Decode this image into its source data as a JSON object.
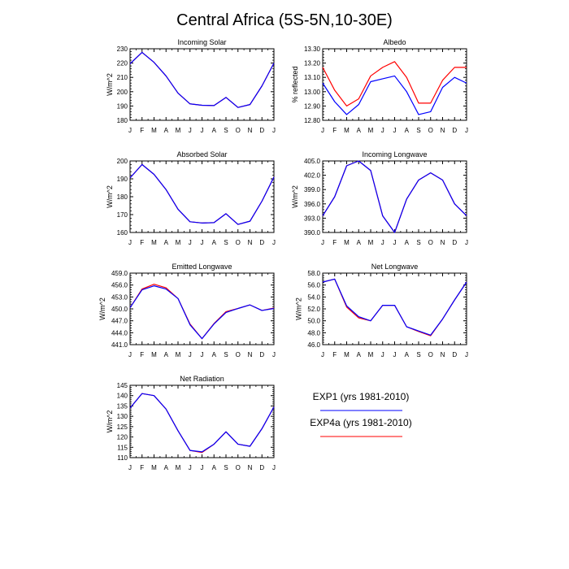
{
  "title": "Central Africa (5S-5N,10-30E)",
  "legend": [
    {
      "label": "EXP1 (yrs 1981-2010)",
      "color": "#0000ff"
    },
    {
      "label": "EXP4a (yrs 1981-2010)",
      "color": "#ff0000"
    }
  ],
  "chart_data": [
    {
      "type": "line",
      "title": "Incoming Solar",
      "ylabel": "W/m^2",
      "categories": [
        "J",
        "F",
        "M",
        "A",
        "M",
        "J",
        "J",
        "A",
        "S",
        "O",
        "N",
        "D",
        "J"
      ],
      "ylim": [
        180,
        230
      ],
      "yticks": [
        "180",
        "190",
        "200",
        "210",
        "220",
        "230"
      ],
      "grid": false,
      "series": [
        {
          "color": "#ff0000",
          "values": [
            219.5,
            227.5,
            220.5,
            211,
            199,
            191.5,
            190.5,
            190.3,
            196,
            189,
            191,
            204,
            220
          ]
        },
        {
          "color": "#0000ff",
          "values": [
            219.5,
            227.5,
            220.5,
            211,
            199,
            191.5,
            190.5,
            190.3,
            196,
            189,
            191,
            204,
            220
          ]
        }
      ]
    },
    {
      "type": "line",
      "title": "Albedo",
      "ylabel": "% reflected",
      "categories": [
        "J",
        "F",
        "M",
        "A",
        "M",
        "J",
        "J",
        "A",
        "S",
        "O",
        "N",
        "D",
        "J"
      ],
      "ylim": [
        12.8,
        13.3
      ],
      "yticks": [
        "12.80",
        "12.90",
        "13.00",
        "13.10",
        "13.20",
        "13.30"
      ],
      "grid": false,
      "series": [
        {
          "color": "#ff0000",
          "values": [
            13.17,
            13.01,
            12.9,
            12.95,
            13.11,
            13.17,
            13.21,
            13.1,
            12.92,
            12.92,
            13.08,
            13.17,
            13.17
          ]
        },
        {
          "color": "#0000ff",
          "values": [
            13.06,
            12.93,
            12.84,
            12.91,
            13.07,
            13.09,
            13.11,
            13.0,
            12.84,
            12.86,
            13.03,
            13.1,
            13.06
          ]
        }
      ]
    },
    {
      "type": "line",
      "title": "Absorbed Solar",
      "ylabel": "W/m^2",
      "categories": [
        "J",
        "F",
        "M",
        "A",
        "M",
        "J",
        "J",
        "A",
        "S",
        "O",
        "N",
        "D",
        "J"
      ],
      "ylim": [
        160,
        200
      ],
      "yticks": [
        "160",
        "170",
        "180",
        "190",
        "200"
      ],
      "grid": false,
      "series": [
        {
          "color": "#ff0000",
          "values": [
            190.5,
            198,
            192.5,
            184,
            173,
            166,
            165.3,
            165.5,
            170.5,
            164.5,
            166.3,
            177.5,
            191
          ]
        },
        {
          "color": "#0000ff",
          "values": [
            190.5,
            198,
            192.5,
            184,
            173,
            166,
            165.3,
            165.5,
            170.5,
            164.5,
            166.3,
            177.5,
            191
          ]
        }
      ]
    },
    {
      "type": "line",
      "title": "Incoming Longwave",
      "ylabel": "W/m^2",
      "categories": [
        "J",
        "F",
        "M",
        "A",
        "M",
        "J",
        "J",
        "A",
        "S",
        "O",
        "N",
        "D",
        "J"
      ],
      "ylim": [
        390,
        405
      ],
      "yticks": [
        "390.0",
        "393.0",
        "396.0",
        "399.0",
        "402.0",
        "405.0"
      ],
      "grid": false,
      "series": [
        {
          "color": "#ff0000",
          "values": [
            393.5,
            397.5,
            404,
            405,
            403,
            393.5,
            390,
            397,
            401,
            402.5,
            401,
            396,
            393.5
          ]
        },
        {
          "color": "#0000ff",
          "values": [
            393.5,
            397.5,
            404,
            405,
            403,
            393.5,
            390,
            397,
            401,
            402.5,
            401,
            396,
            393.5
          ]
        }
      ]
    },
    {
      "type": "line",
      "title": "Emitted Longwave",
      "ylabel": "W/m^2",
      "categories": [
        "J",
        "F",
        "M",
        "A",
        "M",
        "J",
        "J",
        "A",
        "S",
        "O",
        "N",
        "D",
        "J"
      ],
      "ylim": [
        441,
        459
      ],
      "yticks": [
        "441.0",
        "444.0",
        "447.0",
        "450.0",
        "453.0",
        "456.0",
        "459.0"
      ],
      "grid": false,
      "series": [
        {
          "color": "#ff0000",
          "values": [
            450.3,
            455,
            456.2,
            455.3,
            452.6,
            446.2,
            442.5,
            446.3,
            449.3,
            450.1,
            451,
            449.6,
            450.2
          ]
        },
        {
          "color": "#0000ff",
          "values": [
            450.3,
            454.8,
            455.8,
            455,
            452.6,
            446,
            442.5,
            446.2,
            449.1,
            450.1,
            451,
            449.6,
            450.1
          ]
        }
      ]
    },
    {
      "type": "line",
      "title": "Net Longwave",
      "ylabel": "W/m^2",
      "categories": [
        "J",
        "F",
        "M",
        "A",
        "M",
        "J",
        "J",
        "A",
        "S",
        "O",
        "N",
        "D",
        "J"
      ],
      "ylim": [
        46,
        58
      ],
      "yticks": [
        "46.0",
        "48.0",
        "50.0",
        "52.0",
        "54.0",
        "56.0",
        "58.0"
      ],
      "grid": false,
      "series": [
        {
          "color": "#ff0000",
          "values": [
            56.5,
            57,
            52.3,
            50.5,
            50,
            52.6,
            52.6,
            49,
            48.2,
            47.5,
            50.3,
            53.5,
            56.5
          ]
        },
        {
          "color": "#0000ff",
          "values": [
            56.5,
            57,
            52.5,
            50.7,
            50,
            52.6,
            52.6,
            49,
            48.3,
            47.6,
            50.3,
            53.5,
            56.5
          ]
        }
      ]
    },
    {
      "type": "line",
      "title": "Net Radiation",
      "ylabel": "W/m^2",
      "categories": [
        "J",
        "F",
        "M",
        "A",
        "M",
        "J",
        "J",
        "A",
        "S",
        "O",
        "N",
        "D",
        "J"
      ],
      "ylim": [
        110,
        145
      ],
      "yticks": [
        "110",
        "115",
        "120",
        "125",
        "130",
        "135",
        "140",
        "145"
      ],
      "grid": false,
      "series": [
        {
          "color": "#ff0000",
          "values": [
            134,
            141,
            140,
            133.5,
            123,
            113.5,
            112.5,
            116.5,
            122.5,
            116.5,
            115.5,
            124,
            134.5
          ]
        },
        {
          "color": "#0000ff",
          "values": [
            134,
            141,
            140,
            133.5,
            123,
            113.5,
            112.8,
            116.5,
            122.5,
            116.5,
            115.5,
            124,
            134.5
          ]
        }
      ]
    }
  ]
}
